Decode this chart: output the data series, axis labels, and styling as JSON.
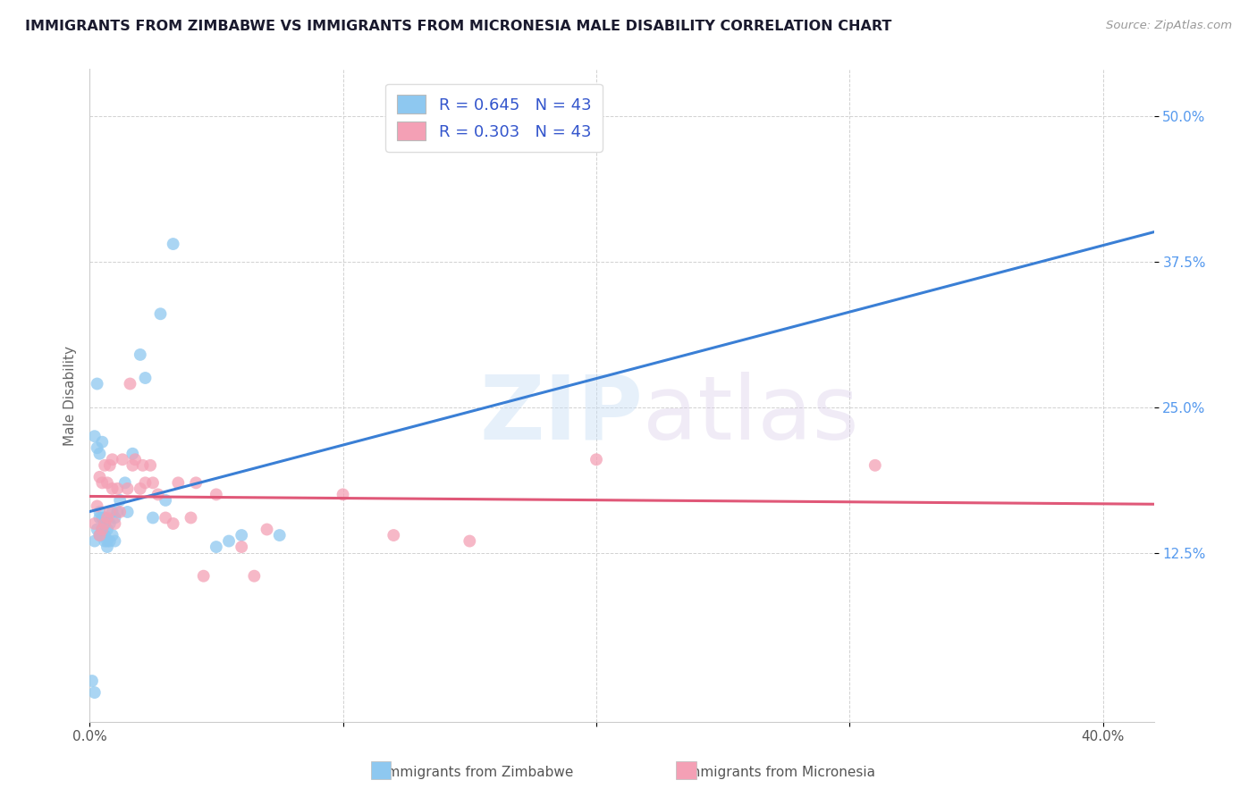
{
  "title": "IMMIGRANTS FROM ZIMBABWE VS IMMIGRANTS FROM MICRONESIA MALE DISABILITY CORRELATION CHART",
  "source": "Source: ZipAtlas.com",
  "ylabel": "Male Disability",
  "ytick_labels": [
    "12.5%",
    "25.0%",
    "37.5%",
    "50.0%"
  ],
  "ytick_values": [
    0.125,
    0.25,
    0.375,
    0.5
  ],
  "xlim": [
    0.0,
    0.42
  ],
  "ylim": [
    -0.02,
    0.54
  ],
  "color_blue": "#8ec8f0",
  "color_pink": "#f4a0b5",
  "line_color_blue": "#3a7fd5",
  "line_color_pink": "#e05878",
  "footer_label1": "Immigrants from Zimbabwe",
  "footer_label2": "Immigrants from Micronesia",
  "watermark_zip": "ZIP",
  "watermark_atlas": "atlas",
  "zimbabwe_x": [
    0.001,
    0.002,
    0.002,
    0.003,
    0.003,
    0.003,
    0.004,
    0.004,
    0.004,
    0.004,
    0.005,
    0.005,
    0.005,
    0.005,
    0.006,
    0.006,
    0.006,
    0.006,
    0.007,
    0.007,
    0.007,
    0.008,
    0.008,
    0.009,
    0.009,
    0.01,
    0.01,
    0.011,
    0.012,
    0.014,
    0.015,
    0.017,
    0.02,
    0.022,
    0.025,
    0.028,
    0.03,
    0.033,
    0.05,
    0.055,
    0.06,
    0.075,
    0.002
  ],
  "zimbabwe_y": [
    0.015,
    0.135,
    0.225,
    0.145,
    0.215,
    0.27,
    0.14,
    0.155,
    0.16,
    0.21,
    0.14,
    0.145,
    0.155,
    0.22,
    0.135,
    0.14,
    0.15,
    0.155,
    0.13,
    0.135,
    0.145,
    0.135,
    0.15,
    0.14,
    0.16,
    0.135,
    0.155,
    0.16,
    0.17,
    0.185,
    0.16,
    0.21,
    0.295,
    0.275,
    0.155,
    0.33,
    0.17,
    0.39,
    0.13,
    0.135,
    0.14,
    0.14,
    0.005
  ],
  "micronesia_x": [
    0.002,
    0.003,
    0.004,
    0.004,
    0.005,
    0.005,
    0.006,
    0.006,
    0.007,
    0.007,
    0.008,
    0.008,
    0.009,
    0.009,
    0.01,
    0.011,
    0.012,
    0.013,
    0.015,
    0.016,
    0.017,
    0.018,
    0.02,
    0.021,
    0.022,
    0.024,
    0.025,
    0.027,
    0.03,
    0.033,
    0.035,
    0.04,
    0.042,
    0.045,
    0.05,
    0.06,
    0.065,
    0.07,
    0.1,
    0.12,
    0.15,
    0.2,
    0.31
  ],
  "micronesia_y": [
    0.15,
    0.165,
    0.14,
    0.19,
    0.145,
    0.185,
    0.15,
    0.2,
    0.155,
    0.185,
    0.16,
    0.2,
    0.18,
    0.205,
    0.15,
    0.18,
    0.16,
    0.205,
    0.18,
    0.27,
    0.2,
    0.205,
    0.18,
    0.2,
    0.185,
    0.2,
    0.185,
    0.175,
    0.155,
    0.15,
    0.185,
    0.155,
    0.185,
    0.105,
    0.175,
    0.13,
    0.105,
    0.145,
    0.175,
    0.14,
    0.135,
    0.205,
    0.2
  ],
  "zim_r": 0.645,
  "mic_r": 0.303,
  "zim_n": 43,
  "mic_n": 43
}
